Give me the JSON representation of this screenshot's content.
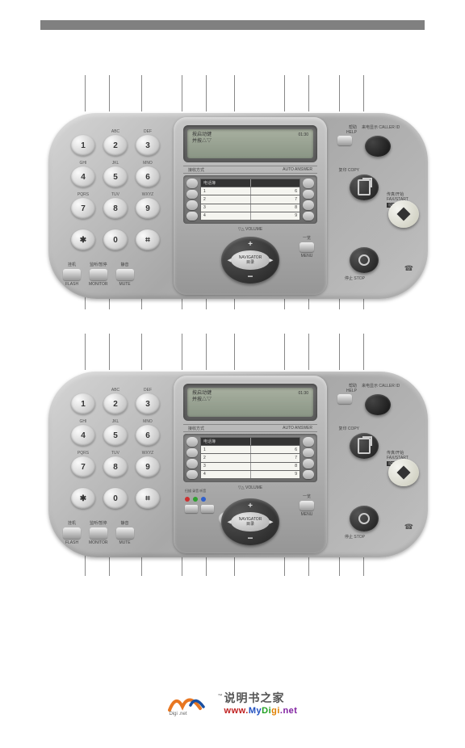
{
  "colors": {
    "panel_bg": "#b5b5b5",
    "key_face": "#e5e5e5",
    "lcd_bg": "#95a090",
    "dark_btn": "#2a2a2a",
    "callout": "#888888",
    "topbar": "#808080",
    "logo_orange": "#e87722",
    "logo_blue": "#1a4fa0"
  },
  "keypad": {
    "labels_row1": [
      "",
      "ABC",
      "DEF"
    ],
    "labels_row2": [
      "GHI",
      "JKL",
      "MNO"
    ],
    "labels_row3": [
      "PQRS",
      "TUV",
      "WXYZ"
    ],
    "labels_row4": [
      "",
      "",
      ""
    ],
    "keys": [
      [
        "1",
        "2",
        "3"
      ],
      [
        "4",
        "5",
        "6"
      ],
      [
        "7",
        "8",
        "9"
      ],
      [
        "✱",
        "0",
        "⌗"
      ]
    ]
  },
  "bottom_buttons": {
    "top_labels": [
      "挂机",
      "监听/暂停",
      "静音"
    ],
    "items": [
      "FLASH",
      "MONITOR",
      "MUTE"
    ]
  },
  "center": {
    "lcd_line1": "按启动键",
    "lcd_line2": "并按△▽",
    "lcd_right": "01:30",
    "mode_label": "接收方式",
    "mode_right": "AUTO ANSWER",
    "sd_header_l": "电话簿",
    "sd_rows": [
      {
        "l": "1",
        "r": "6"
      },
      {
        "l": "2",
        "r": "7"
      },
      {
        "l": "3",
        "r": "8"
      },
      {
        "l": "4",
        "r": "9"
      }
    ],
    "volume_label": "▽△ VOLUME",
    "nav_label_1": "NAVIGATOR",
    "nav_label_2": "目录",
    "menu_label": "MENU",
    "menu_sub": "一览"
  },
  "center2_extra": {
    "scan_label": "扫描  录音  听音",
    "indicators": [
      {
        "color": "#cc3030"
      },
      {
        "color": "#30a030"
      },
      {
        "color": "#3060cc"
      }
    ]
  },
  "right": {
    "help_top": "帮助",
    "help_label": "HELP",
    "callerid_top": "来电显示",
    "callerid_label": "CALLER ID",
    "copy_top": "复印",
    "copy_label": "COPY",
    "fax_top": "传真/开始",
    "fax_label": "FAX/START",
    "fax_sub": "设定",
    "stop_top": "停止",
    "stop_label": "STOP"
  },
  "callouts": {
    "top_positions": [
      175,
      200,
      225,
      250,
      280,
      320,
      352,
      375,
      400
    ],
    "bot_positions": [
      105,
      135,
      175,
      225,
      255,
      290,
      352,
      382,
      420,
      450
    ],
    "top_len": 45,
    "bot_len": 30
  },
  "footer": {
    "brand": "Digi .net",
    "tm": "™",
    "line1": "说明书之家",
    "line2_parts": [
      "www.",
      "My",
      "Di",
      "gi",
      ".net"
    ]
  }
}
